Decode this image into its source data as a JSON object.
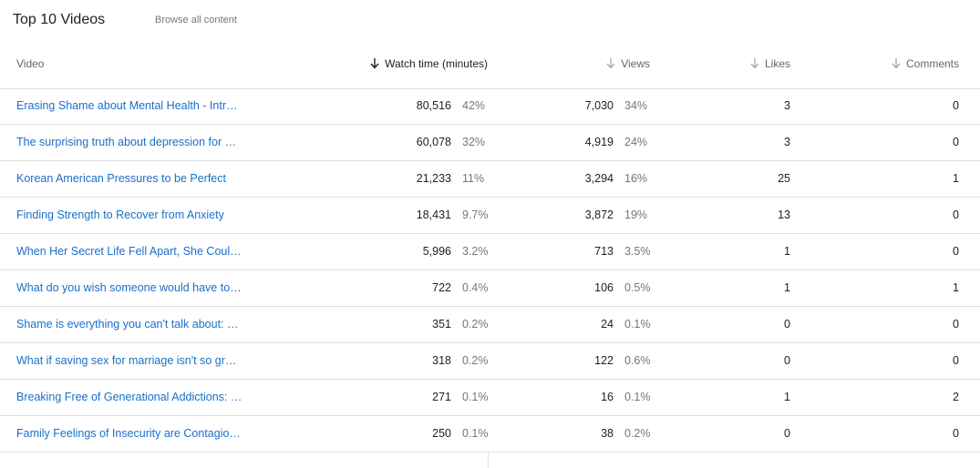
{
  "header": {
    "title": "Top 10 Videos",
    "browse_link": "Browse all content"
  },
  "columns": {
    "video": "Video",
    "watch_time": "Watch time (minutes)",
    "views": "Views",
    "likes": "Likes",
    "comments": "Comments",
    "sort_icon": "arrow-down-icon",
    "active_sort_color": "#212121",
    "inactive_sort_color": "#9e9e9e"
  },
  "rows": [
    {
      "title": "Erasing Shame about Mental Health - Intr…",
      "watch": "80,516",
      "watch_pct": "42%",
      "views": "7,030",
      "views_pct": "34%",
      "likes": "3",
      "comments": "0"
    },
    {
      "title": "The surprising truth about depression for …",
      "watch": "60,078",
      "watch_pct": "32%",
      "views": "4,919",
      "views_pct": "24%",
      "likes": "3",
      "comments": "0"
    },
    {
      "title": "Korean American Pressures to be Perfect",
      "watch": "21,233",
      "watch_pct": "11%",
      "views": "3,294",
      "views_pct": "16%",
      "likes": "25",
      "comments": "1"
    },
    {
      "title": "Finding Strength to Recover from Anxiety",
      "watch": "18,431",
      "watch_pct": "9.7%",
      "views": "3,872",
      "views_pct": "19%",
      "likes": "13",
      "comments": "0"
    },
    {
      "title": "When Her Secret Life Fell Apart, She Coul…",
      "watch": "5,996",
      "watch_pct": "3.2%",
      "views": "713",
      "views_pct": "3.5%",
      "likes": "1",
      "comments": "0"
    },
    {
      "title": "What do you wish someone would have to…",
      "watch": "722",
      "watch_pct": "0.4%",
      "views": "106",
      "views_pct": "0.5%",
      "likes": "1",
      "comments": "1"
    },
    {
      "title": "Shame is everything you can't talk about: …",
      "watch": "351",
      "watch_pct": "0.2%",
      "views": "24",
      "views_pct": "0.1%",
      "likes": "0",
      "comments": "0"
    },
    {
      "title": "What if saving sex for marriage isn't so gr…",
      "watch": "318",
      "watch_pct": "0.2%",
      "views": "122",
      "views_pct": "0.6%",
      "likes": "0",
      "comments": "0"
    },
    {
      "title": "Breaking Free of Generational Addictions: …",
      "watch": "271",
      "watch_pct": "0.1%",
      "views": "16",
      "views_pct": "0.1%",
      "likes": "1",
      "comments": "2"
    },
    {
      "title": "Family Feelings of Insecurity are Contagio…",
      "watch": "250",
      "watch_pct": "0.1%",
      "views": "38",
      "views_pct": "0.2%",
      "likes": "0",
      "comments": "0"
    }
  ]
}
